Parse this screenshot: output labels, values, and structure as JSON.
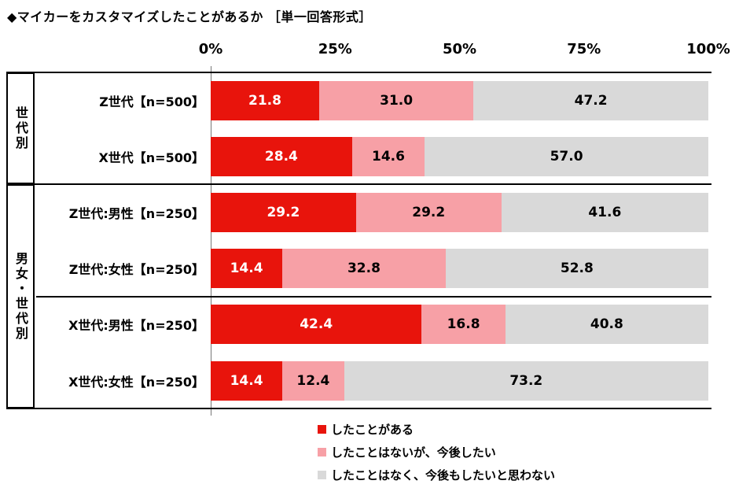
{
  "chart_data": {
    "type": "bar",
    "stacked": true,
    "orientation": "horizontal",
    "title": "◆マイカーをカスタマイズしたことがあるか ［単一回答形式］",
    "xlim": [
      0,
      100
    ],
    "grid": false,
    "legend_position": "bottom",
    "x_ticks": [
      {
        "label": "0%",
        "value": 0
      },
      {
        "label": "25%",
        "value": 25
      },
      {
        "label": "50%",
        "value": 50
      },
      {
        "label": "75%",
        "value": 75
      },
      {
        "label": "100%",
        "value": 100
      }
    ],
    "groups": [
      {
        "label": "世代別",
        "row_count": 2
      },
      {
        "label": "男女・世代別",
        "row_count": 4
      }
    ],
    "sub_separators_after_rows": [
      4
    ],
    "categories": [
      "Z世代【n=500】",
      "X世代【n=500】",
      "Z世代:男性【n=250】",
      "Z世代:女性【n=250】",
      "X世代:男性【n=250】",
      "X世代:女性【n=250】"
    ],
    "series": [
      {
        "name": "したことがある",
        "color": "#e8140c",
        "text_color": "#ffffff",
        "values": [
          21.8,
          28.4,
          29.2,
          14.4,
          42.4,
          14.4
        ]
      },
      {
        "name": "したことはないが、今後したい",
        "color": "#f7a0a6",
        "text_color": "#000000",
        "values": [
          31.0,
          14.6,
          29.2,
          32.8,
          16.8,
          12.4
        ]
      },
      {
        "name": "したことはなく、今後もしたいと思わない",
        "color": "#d9d9d9",
        "text_color": "#000000",
        "values": [
          47.2,
          57.0,
          41.6,
          52.8,
          40.8,
          73.2
        ]
      }
    ]
  }
}
